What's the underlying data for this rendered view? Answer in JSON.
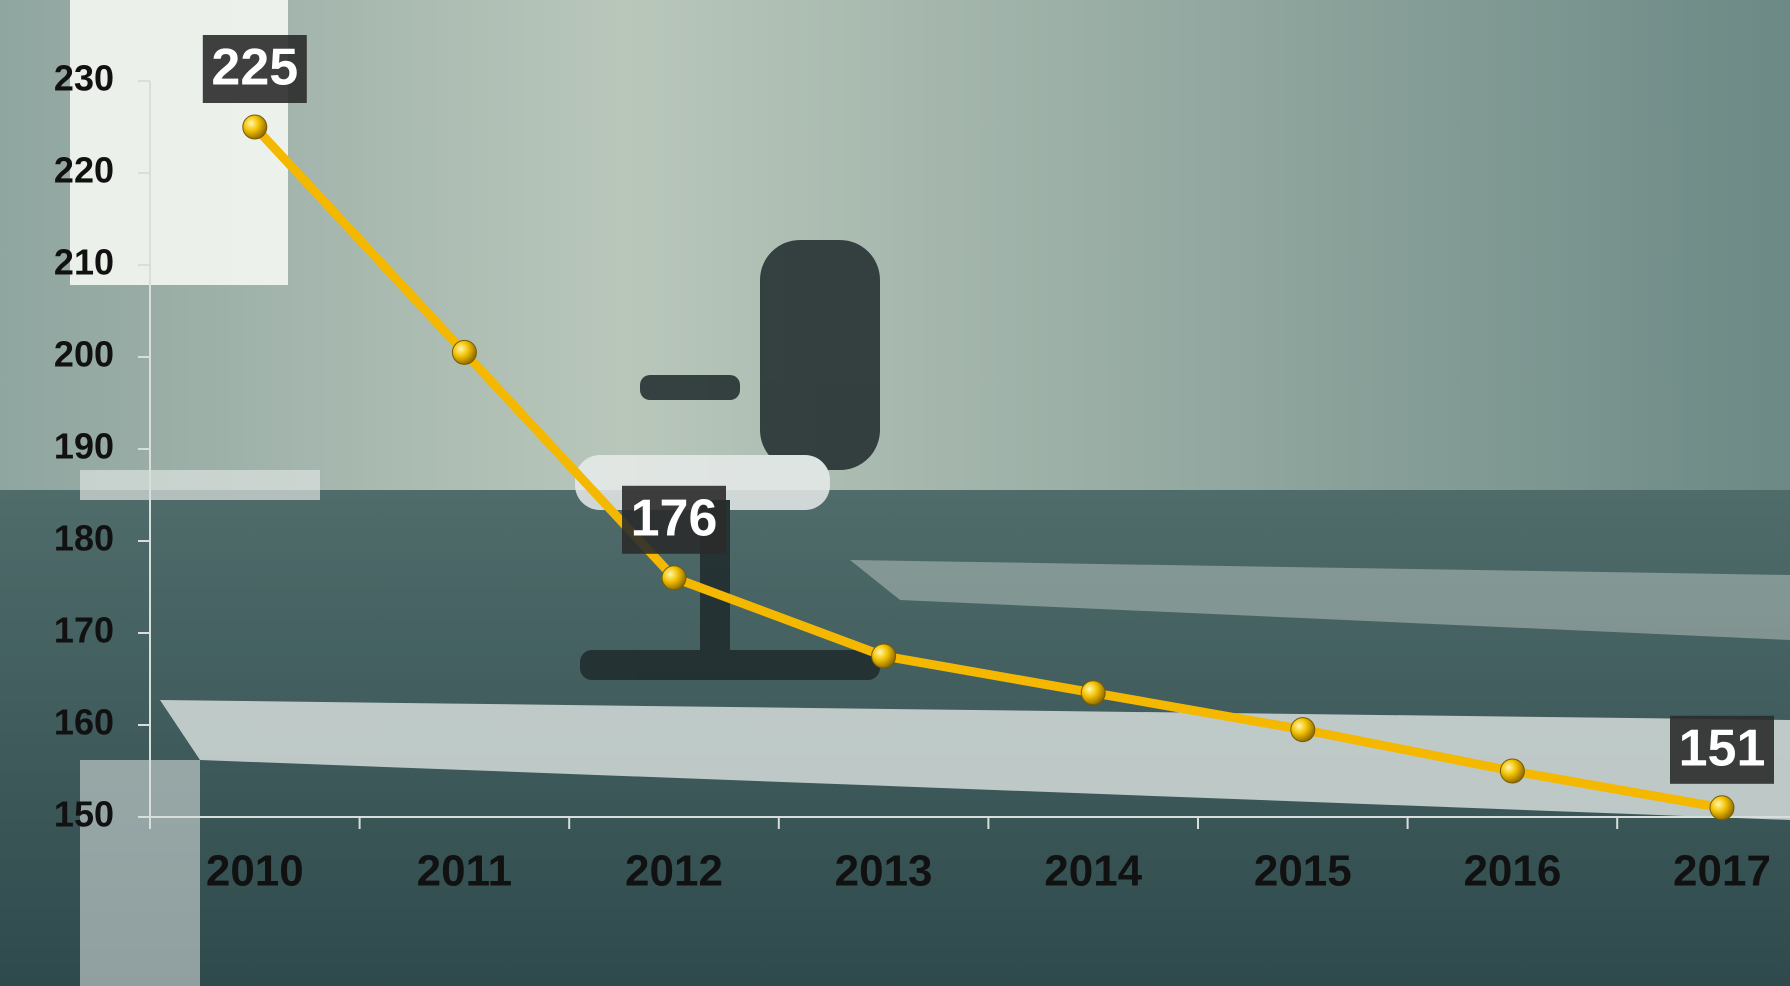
{
  "chart_data": {
    "type": "line",
    "categories": [
      "2010",
      "2011",
      "2012",
      "2013",
      "2014",
      "2015",
      "2016",
      "2017"
    ],
    "series": [
      {
        "color": "#f5b800",
        "values": [
          225,
          200.5,
          176,
          167.5,
          163.5,
          159.5,
          155,
          151
        ],
        "value_labels": [
          "225",
          null,
          "176",
          null,
          null,
          null,
          null,
          "151"
        ]
      }
    ],
    "ylim": [
      150,
      230
    ],
    "yticks": [
      150,
      160,
      170,
      180,
      190,
      200,
      210,
      220,
      230
    ]
  }
}
